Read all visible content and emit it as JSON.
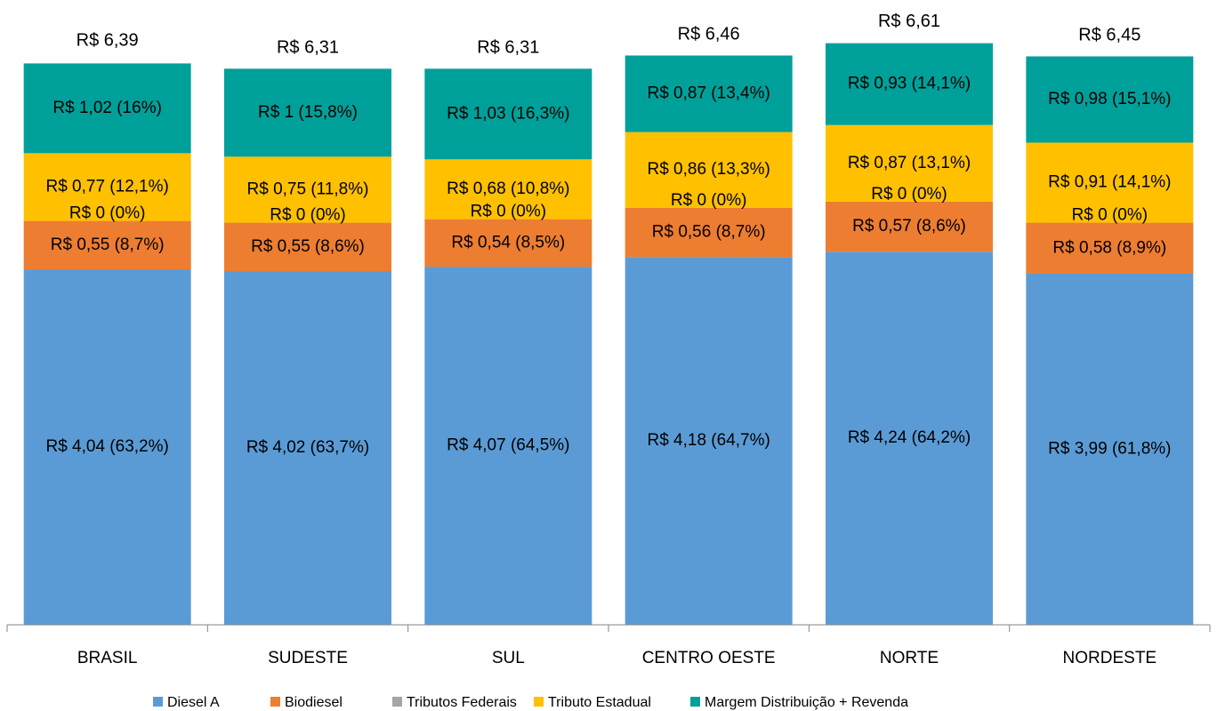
{
  "chart_data": {
    "type": "stacked_bar",
    "categories": [
      "BRASIL",
      "SUDESTE",
      "SUL",
      "CENTRO OESTE",
      "NORTE",
      "NORDESTE"
    ],
    "series": [
      {
        "name": "Diesel A",
        "color": "#5b9bd5",
        "values": [
          4.04,
          4.02,
          4.07,
          4.18,
          4.24,
          3.99
        ],
        "value_labels": [
          "R$ 4,04 (63,2%)",
          "R$ 4,02 (63,7%)",
          "R$ 4,07 (64,5%)",
          "R$ 4,18 (64,7%)",
          "R$ 4,24 (64,2%)",
          "R$ 3,99 (61,8%)"
        ]
      },
      {
        "name": "Biodiesel",
        "color": "#ed7d31",
        "values": [
          0.55,
          0.55,
          0.54,
          0.56,
          0.57,
          0.58
        ],
        "value_labels": [
          "R$ 0,55 (8,7%)",
          "R$ 0,55 (8,6%)",
          "R$ 0,54 (8,5%)",
          "R$ 0,56 (8,7%)",
          "R$ 0,57 (8,6%)",
          "R$ 0,58 (8,9%)"
        ]
      },
      {
        "name": "Tributos Federais",
        "color": "#a5a5a5",
        "values": [
          0,
          0,
          0,
          0,
          0,
          0
        ],
        "value_labels": [
          "R$ 0 (0%)",
          "R$ 0 (0%)",
          "R$ 0 (0%)",
          "R$ 0 (0%)",
          "R$ 0 (0%)",
          "R$ 0 (0%)"
        ]
      },
      {
        "name": "Tributo Estadual",
        "color": "#ffc000",
        "values": [
          0.77,
          0.75,
          0.68,
          0.86,
          0.87,
          0.91
        ],
        "value_labels": [
          "R$ 0,77 (12,1%)",
          "R$ 0,75 (11,8%)",
          "R$ 0,68 (10,8%)",
          "R$ 0,86 (13,3%)",
          "R$ 0,87 (13,1%)",
          "R$ 0,91 (14,1%)"
        ]
      },
      {
        "name": "Margem Distribuição + Revenda",
        "color": "#00a09a",
        "values": [
          1.02,
          1,
          1.03,
          0.87,
          0.93,
          0.98
        ],
        "value_labels": [
          "R$ 1,02 (16%)",
          "R$ 1 (15,8%)",
          "R$ 1,03 (16,3%)",
          "R$ 0,87 (13,4%)",
          "R$ 0,93 (14,1%)",
          "R$ 0,98 (15,1%)"
        ]
      }
    ],
    "totals": [
      6.39,
      6.31,
      6.31,
      6.46,
      6.61,
      6.45
    ],
    "total_labels": [
      "R$ 6,39",
      "R$ 6,31",
      "R$ 6,31",
      "R$ 6,46",
      "R$ 6,61",
      "R$ 6,45"
    ],
    "ylim": [
      0,
      7
    ],
    "legend": "bottom"
  }
}
